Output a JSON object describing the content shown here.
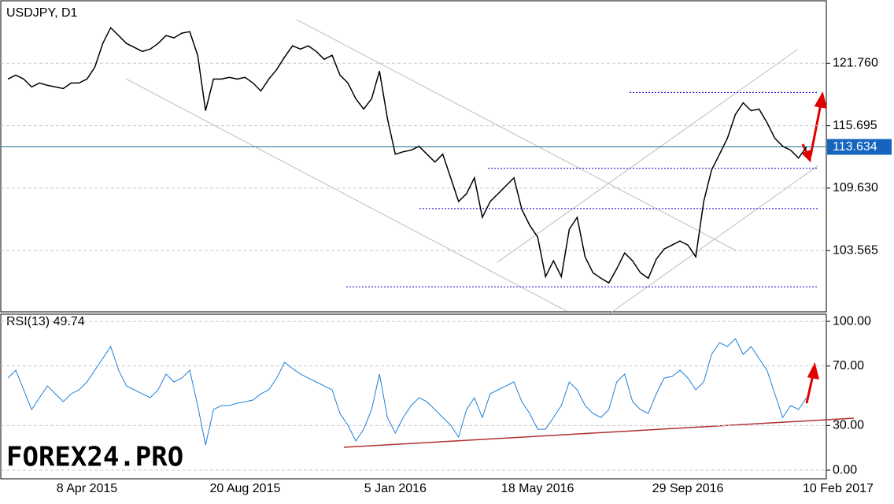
{
  "chart_data": [
    {
      "type": "line",
      "title": "USDJPY, D1",
      "categories": [
        null,
        null,
        null,
        null,
        null,
        null,
        null,
        null,
        null,
        null,
        "8 Apr 2015",
        null,
        null,
        null,
        null,
        null,
        null,
        null,
        null,
        null,
        null,
        null,
        null,
        null,
        null,
        null,
        null,
        null,
        null,
        null,
        "20 Aug 2015",
        null,
        null,
        null,
        null,
        null,
        null,
        null,
        null,
        null,
        null,
        null,
        null,
        null,
        null,
        null,
        null,
        null,
        null,
        "5 Jan 2016",
        null,
        null,
        null,
        null,
        null,
        null,
        null,
        null,
        null,
        null,
        null,
        null,
        null,
        null,
        null,
        null,
        null,
        "18 May 2016",
        null,
        null,
        null,
        null,
        null,
        null,
        null,
        null,
        null,
        null,
        null,
        null,
        null,
        null,
        null,
        null,
        null,
        null,
        "29 Sep 2016",
        null,
        null,
        null,
        null,
        null,
        null,
        null,
        null,
        null,
        null,
        null,
        null,
        null,
        null,
        null,
        null,
        null,
        null,
        "10 Feb 2017"
      ],
      "values": [
        120.22,
        120.61,
        120.22,
        119.46,
        119.84,
        119.61,
        119.46,
        119.3,
        119.84,
        119.84,
        120.22,
        121.38,
        123.68,
        125.21,
        124.45,
        123.68,
        123.3,
        122.91,
        123.14,
        123.68,
        124.45,
        124.22,
        124.68,
        124.83,
        122.53,
        117.15,
        120.22,
        120.22,
        120.38,
        120.22,
        120.38,
        119.84,
        119.07,
        120.22,
        121.15,
        122.37,
        123.45,
        123.14,
        123.45,
        122.91,
        122.14,
        122.53,
        120.61,
        119.84,
        118.31,
        117.31,
        118.31,
        121.0,
        116.39,
        112.93,
        113.16,
        113.32,
        113.7,
        112.93,
        112.16,
        112.93,
        110.63,
        108.33,
        109.09,
        110.63,
        106.79,
        108.33,
        109.09,
        109.86,
        110.63,
        107.56,
        106.02,
        104.87,
        101.03,
        102.57,
        101.03,
        105.64,
        106.79,
        102.95,
        101.41,
        100.88,
        100.42,
        101.8,
        103.33,
        102.57,
        101.41,
        100.88,
        102.72,
        103.72,
        104.1,
        104.49,
        104.1,
        102.95,
        108.33,
        111.4,
        112.93,
        114.47,
        116.77,
        117.92,
        117.15,
        117.31,
        116.0,
        114.47,
        113.7,
        113.32,
        112.55,
        113.63,
        null,
        null,
        null,
        null
      ],
      "color": "#000000",
      "ylim": [
        97.69,
        127.52
      ],
      "yticks": [
        {
          "value": 103.565,
          "label": "103.565"
        },
        {
          "value": 109.63,
          "label": "109.630"
        },
        {
          "value": 115.695,
          "label": "115.695"
        },
        {
          "value": 121.76,
          "label": "121.760"
        }
      ],
      "current": {
        "value": 113.634,
        "label": "113.634"
      },
      "levels": [
        118.92,
        111.55,
        107.64,
        100.04
      ],
      "grid": true
    },
    {
      "type": "line",
      "title": "RSI(13) 49.74",
      "values": [
        61.9,
        67.2,
        54.0,
        40.7,
        48.7,
        56.6,
        51.3,
        46.0,
        51.3,
        54.0,
        59.3,
        67.2,
        75.1,
        83.1,
        67.2,
        56.6,
        54.0,
        51.3,
        48.7,
        54.0,
        64.6,
        59.3,
        61.9,
        67.2,
        43.4,
        16.9,
        40.7,
        43.4,
        43.4,
        45.0,
        46.0,
        47.1,
        51.3,
        54.0,
        61.9,
        72.5,
        68.3,
        64.6,
        61.9,
        59.3,
        56.6,
        54.0,
        38.1,
        30.2,
        19.6,
        27.5,
        40.7,
        64.6,
        35.4,
        24.9,
        35.4,
        43.4,
        48.7,
        46.0,
        40.7,
        35.4,
        30.2,
        22.2,
        40.7,
        48.7,
        35.4,
        51.3,
        54.0,
        56.6,
        59.3,
        46.0,
        38.1,
        27.5,
        27.5,
        35.4,
        43.4,
        59.3,
        54.0,
        43.4,
        38.1,
        35.4,
        40.7,
        59.3,
        64.6,
        46.0,
        40.7,
        38.1,
        51.3,
        61.9,
        63.0,
        67.2,
        61.9,
        54.0,
        59.3,
        77.8,
        85.7,
        83.1,
        88.4,
        77.8,
        83.1,
        75.1,
        67.2,
        51.3,
        35.4,
        43.4,
        40.7,
        48.7,
        null,
        null,
        null,
        null
      ],
      "color": "#1e7fd6",
      "ylim": [
        -5.8,
        104.8
      ],
      "yticks": [
        {
          "value": 0,
          "label": "0.00"
        },
        {
          "value": 30,
          "label": "30.00"
        },
        {
          "value": 70,
          "label": "70.00"
        },
        {
          "value": 100,
          "label": "100.00"
        }
      ],
      "grid": true
    }
  ],
  "watermark": "FOREX24.PRO"
}
